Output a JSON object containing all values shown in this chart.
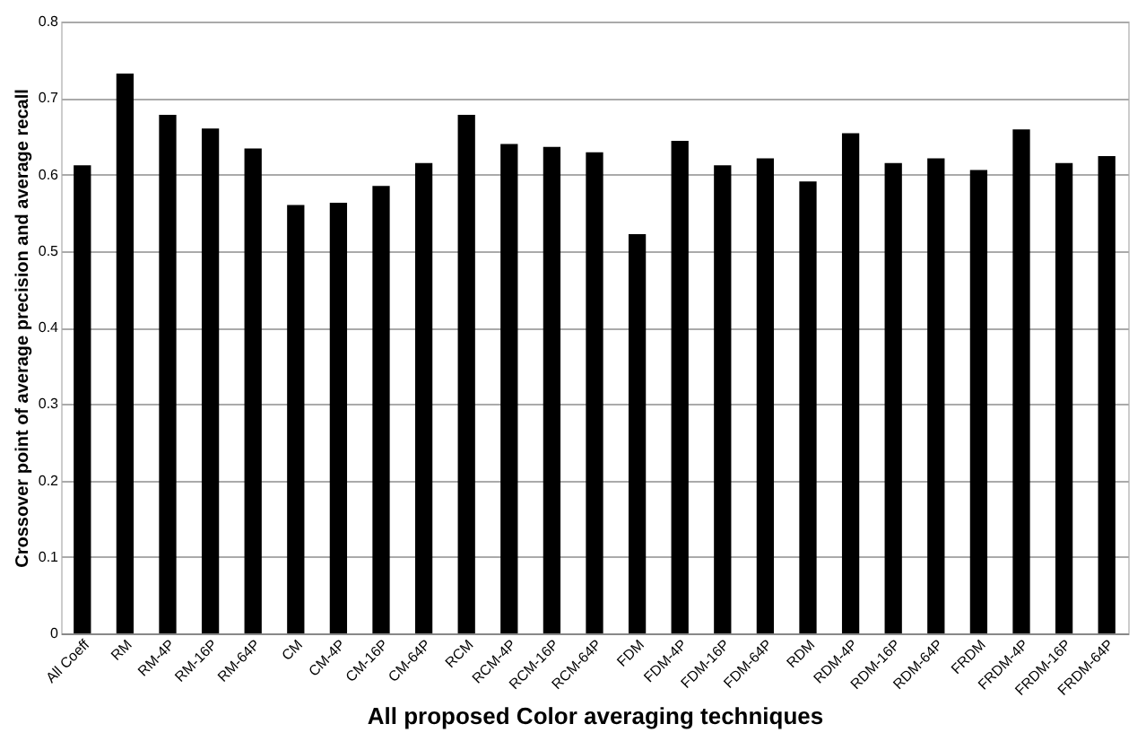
{
  "chart_data": {
    "type": "bar",
    "xlabel": "All proposed Color averaging techniques",
    "ylabel": "Crossover point of average precision and average recall",
    "categories": [
      "All Coeff",
      "RM",
      "RM-4P",
      "RM-16P",
      "RM-64P",
      "CM",
      "CM-4P",
      "CM-16P",
      "CM-64P",
      "RCM",
      "RCM-4P",
      "RCM-16P",
      "RCM-64P",
      "FDM",
      "FDM-4P",
      "FDM-16P",
      "FDM-64P",
      "RDM",
      "RDM-4P",
      "RDM-16P",
      "RDM-64P",
      "FRDM",
      "FRDM-4P",
      "FRDM-16P",
      "FRDM-64P"
    ],
    "values": [
      0.612,
      0.732,
      0.678,
      0.66,
      0.634,
      0.56,
      0.563,
      0.585,
      0.615,
      0.678,
      0.64,
      0.636,
      0.629,
      0.522,
      0.644,
      0.612,
      0.621,
      0.591,
      0.654,
      0.615,
      0.621,
      0.606,
      0.659,
      0.615,
      0.624
    ],
    "color": "#000000",
    "ylim": [
      0,
      0.8
    ],
    "yticks": [
      0,
      0.1,
      0.2,
      0.3,
      0.4,
      0.5,
      0.6,
      0.7,
      0.8
    ],
    "grid": "y"
  }
}
